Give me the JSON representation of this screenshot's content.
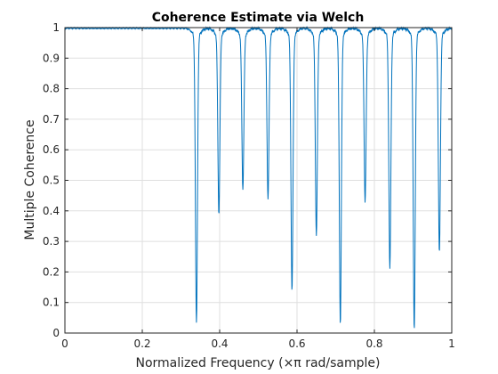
{
  "chart_data": {
    "type": "line",
    "title": "Coherence Estimate via Welch",
    "xlabel": "Normalized Frequency  (×π rad/sample)",
    "ylabel": "Multiple Coherence",
    "xlim": [
      0,
      1
    ],
    "ylim": [
      0,
      1
    ],
    "xticks": [
      "0",
      "0.2",
      "0.4",
      "0.6",
      "0.8",
      "1"
    ],
    "yticks": [
      "0",
      "0.1",
      "0.2",
      "0.3",
      "0.4",
      "0.5",
      "0.6",
      "0.7",
      "0.8",
      "0.9",
      "1"
    ],
    "grid": true,
    "line_color": "#0072BD",
    "baseline": 0.998,
    "dips": [
      {
        "x": 0.34,
        "min": 0.03
      },
      {
        "x": 0.398,
        "min": 0.39
      },
      {
        "x": 0.46,
        "min": 0.47
      },
      {
        "x": 0.525,
        "min": 0.44
      },
      {
        "x": 0.587,
        "min": 0.14
      },
      {
        "x": 0.65,
        "min": 0.32
      },
      {
        "x": 0.712,
        "min": 0.03
      },
      {
        "x": 0.776,
        "min": 0.43
      },
      {
        "x": 0.84,
        "min": 0.21
      },
      {
        "x": 0.903,
        "min": 0.01
      },
      {
        "x": 0.968,
        "min": 0.26
      }
    ]
  }
}
